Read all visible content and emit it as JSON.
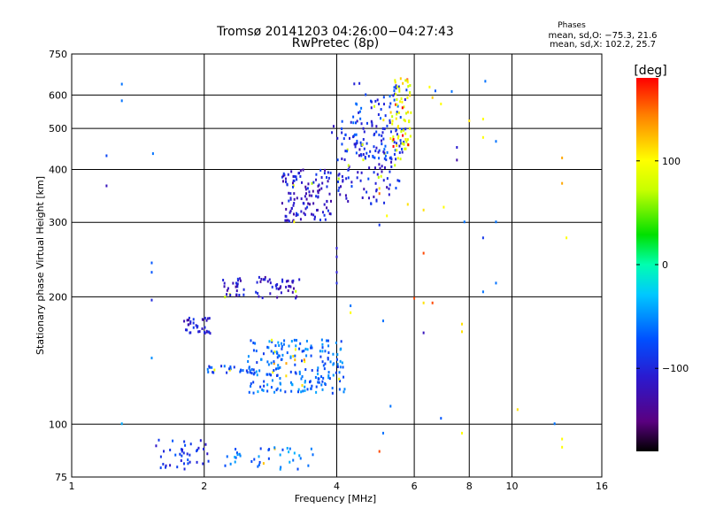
{
  "chart_data": {
    "type": "scatter",
    "title": "Tromsø 20141203 04:26:00−04:27:43",
    "subtitle": "RwPretec (8p)",
    "stats": {
      "heading": "Phases",
      "line1": "mean, sd,O: −75.3, 21.6",
      "line2": "mean, sd,X: 102.2, 25.7"
    },
    "xlabel": "Frequency [MHz]",
    "ylabel": "Stationary phase Virtual Height [km]",
    "x_scale": "log",
    "y_scale": "log",
    "xlim": [
      1,
      16
    ],
    "ylim": [
      75,
      750
    ],
    "x_ticks": [
      1,
      2,
      4,
      6,
      8,
      10,
      16
    ],
    "x_tick_labels": [
      "1",
      "2",
      "4",
      "6",
      "8",
      "10",
      "16"
    ],
    "y_ticks": [
      75,
      100,
      200,
      300,
      400,
      500,
      600,
      750
    ],
    "y_tick_labels": [
      "75",
      "100",
      "200",
      "300",
      "400",
      "500",
      "600",
      "750"
    ],
    "grid": true,
    "colorbar": {
      "label": "[deg]",
      "range": [
        -180,
        180
      ],
      "tick_values": [
        100,
        0,
        -100
      ],
      "tick_labels": [
        "100",
        "0",
        "−100"
      ],
      "colormap": "rainbow (black-purple-blue-cyan-green-yellow-orange-red)"
    },
    "clusters": [
      {
        "x_range": [
          1.55,
          2.05
        ],
        "y_range": [
          78,
          92
        ],
        "phase": -90,
        "n": 40
      },
      {
        "x_range": [
          2.2,
          3.6
        ],
        "y_range": [
          78,
          88
        ],
        "phase": -60,
        "n": 40
      },
      {
        "x_range": [
          1.8,
          2.1
        ],
        "y_range": [
          163,
          178
        ],
        "phase": -110,
        "n": 35
      },
      {
        "x_range": [
          2.2,
          3.3
        ],
        "y_range": [
          198,
          222
        ],
        "phase": -115,
        "n": 70
      },
      {
        "x_range": [
          2.0,
          2.6
        ],
        "y_range": [
          132,
          137
        ],
        "phase": -80,
        "n": 25
      },
      {
        "x_range": [
          2.5,
          4.2
        ],
        "y_range": [
          118,
          158
        ],
        "phase": -65,
        "n": 210
      },
      {
        "x_range": [
          3.0,
          3.9
        ],
        "y_range": [
          300,
          400
        ],
        "phase": -110,
        "n": 120
      },
      {
        "x_range": [
          3.9,
          5.6
        ],
        "y_range": [
          330,
          520
        ],
        "phase": -100,
        "n": 130
      },
      {
        "x_range": [
          4.3,
          5.8
        ],
        "y_range": [
          420,
          640
        ],
        "phase": -85,
        "n": 90
      },
      {
        "x_range": [
          5.3,
          5.9
        ],
        "y_range": [
          420,
          660
        ],
        "phase": 95,
        "n": 70
      }
    ],
    "points": [
      {
        "x": 1.2,
        "y": 430,
        "phase": -80
      },
      {
        "x": 1.2,
        "y": 365,
        "phase": -120
      },
      {
        "x": 1.3,
        "y": 635,
        "phase": -60
      },
      {
        "x": 1.3,
        "y": 580,
        "phase": -60
      },
      {
        "x": 1.53,
        "y": 435,
        "phase": -60
      },
      {
        "x": 1.52,
        "y": 240,
        "phase": -70
      },
      {
        "x": 1.52,
        "y": 228,
        "phase": -70
      },
      {
        "x": 1.52,
        "y": 196,
        "phase": -100
      },
      {
        "x": 1.52,
        "y": 143,
        "phase": -50
      },
      {
        "x": 1.3,
        "y": 100,
        "phase": -40
      },
      {
        "x": 4.0,
        "y": 260,
        "phase": -110
      },
      {
        "x": 4.0,
        "y": 248,
        "phase": -110
      },
      {
        "x": 4.0,
        "y": 228,
        "phase": -110
      },
      {
        "x": 4.0,
        "y": 215,
        "phase": -100
      },
      {
        "x": 6.0,
        "y": 198,
        "phase": 160
      },
      {
        "x": 6.3,
        "y": 253,
        "phase": 160
      },
      {
        "x": 6.3,
        "y": 193,
        "phase": 110
      },
      {
        "x": 6.6,
        "y": 193,
        "phase": 160
      },
      {
        "x": 6.3,
        "y": 164,
        "phase": -120
      },
      {
        "x": 7.7,
        "y": 172,
        "phase": 110
      },
      {
        "x": 7.7,
        "y": 165,
        "phase": 110
      },
      {
        "x": 7.7,
        "y": 95,
        "phase": 100
      },
      {
        "x": 6.9,
        "y": 103,
        "phase": -70
      },
      {
        "x": 8.6,
        "y": 275,
        "phase": -90
      },
      {
        "x": 8.6,
        "y": 205,
        "phase": -60
      },
      {
        "x": 9.2,
        "y": 215,
        "phase": -60
      },
      {
        "x": 9.2,
        "y": 300,
        "phase": -60
      },
      {
        "x": 8.6,
        "y": 475,
        "phase": 100
      },
      {
        "x": 8.6,
        "y": 525,
        "phase": 100
      },
      {
        "x": 8.7,
        "y": 645,
        "phase": -60
      },
      {
        "x": 9.2,
        "y": 465,
        "phase": -60
      },
      {
        "x": 7.5,
        "y": 450,
        "phase": -110
      },
      {
        "x": 7.5,
        "y": 420,
        "phase": -130
      },
      {
        "x": 7.0,
        "y": 325,
        "phase": 100
      },
      {
        "x": 7.8,
        "y": 300,
        "phase": -60
      },
      {
        "x": 8.0,
        "y": 520,
        "phase": 110
      },
      {
        "x": 10.3,
        "y": 108,
        "phase": 110
      },
      {
        "x": 12.5,
        "y": 100,
        "phase": -60
      },
      {
        "x": 13.0,
        "y": 425,
        "phase": 130
      },
      {
        "x": 13.0,
        "y": 370,
        "phase": 130
      },
      {
        "x": 13.3,
        "y": 275,
        "phase": 100
      },
      {
        "x": 13.0,
        "y": 92,
        "phase": 100
      },
      {
        "x": 13.0,
        "y": 88,
        "phase": 100
      },
      {
        "x": 6.7,
        "y": 612,
        "phase": -70
      },
      {
        "x": 7.3,
        "y": 610,
        "phase": -60
      },
      {
        "x": 6.6,
        "y": 590,
        "phase": 120
      },
      {
        "x": 6.9,
        "y": 570,
        "phase": 100
      },
      {
        "x": 6.5,
        "y": 625,
        "phase": 100
      },
      {
        "x": 5.0,
        "y": 360,
        "phase": 110
      },
      {
        "x": 5.0,
        "y": 350,
        "phase": 150
      },
      {
        "x": 5.2,
        "y": 310,
        "phase": 100
      },
      {
        "x": 5.0,
        "y": 295,
        "phase": -90
      },
      {
        "x": 5.8,
        "y": 330,
        "phase": 110
      },
      {
        "x": 6.3,
        "y": 320,
        "phase": 110
      },
      {
        "x": 4.3,
        "y": 183,
        "phase": 100
      },
      {
        "x": 4.3,
        "y": 190,
        "phase": -60
      },
      {
        "x": 5.1,
        "y": 175,
        "phase": -60
      },
      {
        "x": 5.3,
        "y": 110,
        "phase": -60
      },
      {
        "x": 5.1,
        "y": 95,
        "phase": -60
      },
      {
        "x": 5.0,
        "y": 86,
        "phase": 160
      },
      {
        "x": 3.2,
        "y": 300,
        "phase": 100
      }
    ]
  }
}
